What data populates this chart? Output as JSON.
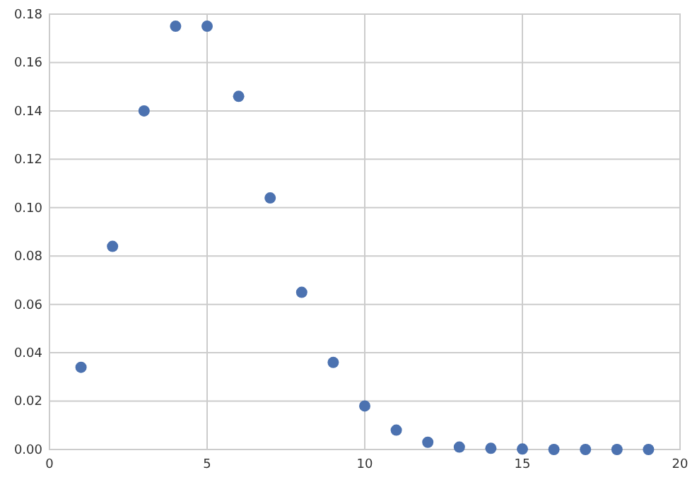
{
  "chart_data": {
    "type": "scatter",
    "x": [
      1,
      2,
      3,
      4,
      5,
      6,
      7,
      8,
      9,
      10,
      11,
      12,
      13,
      14,
      15,
      16,
      17,
      18,
      19
    ],
    "series": [
      {
        "color": "#4c72b0",
        "values": [
          0.034,
          0.084,
          0.14,
          0.175,
          0.175,
          0.146,
          0.104,
          0.065,
          0.036,
          0.018,
          0.008,
          0.003,
          0.001,
          0.0005,
          0.0002,
          0,
          0,
          0,
          0
        ]
      }
    ],
    "xlim": [
      0,
      20
    ],
    "xticks": [
      0,
      5,
      10,
      15,
      20
    ],
    "ylim": [
      0,
      0.18
    ],
    "yticks": [
      {
        "value": 0,
        "label": "0.00"
      },
      {
        "value": 0.02,
        "label": "0.02"
      },
      {
        "value": 0.04,
        "label": "0.04"
      },
      {
        "value": 0.06,
        "label": "0.06"
      },
      {
        "value": 0.08,
        "label": "0.08"
      },
      {
        "value": 0.1,
        "label": "0.10"
      },
      {
        "value": 0.12,
        "label": "0.12"
      },
      {
        "value": 0.14,
        "label": "0.14"
      },
      {
        "value": 0.16,
        "label": "0.16"
      },
      {
        "value": 0.18,
        "label": "0.18"
      }
    ],
    "grid": true,
    "marker": "circle"
  }
}
